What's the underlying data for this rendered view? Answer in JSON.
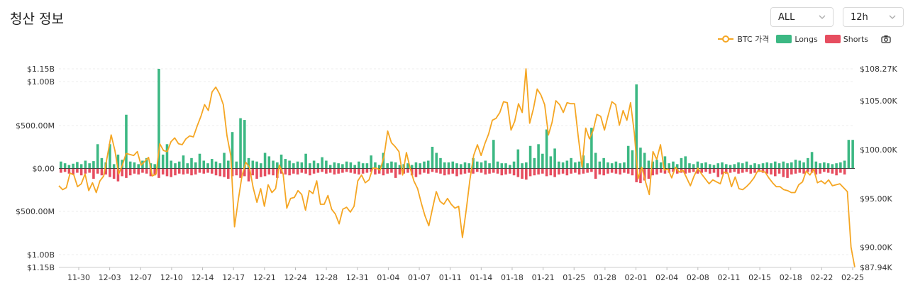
{
  "page": {
    "title": "청산 정보"
  },
  "controls": {
    "exchange_select": {
      "value": "ALL"
    },
    "interval_select": {
      "value": "12h"
    }
  },
  "icons": {
    "chevron": "chevron-down-icon",
    "camera": "camera-icon"
  },
  "colors": {
    "longs": "#3cb883",
    "shorts": "#e64d5f",
    "price": "#f5a623",
    "grid": "#eeeeee"
  },
  "chart_data": {
    "type": "bar",
    "title": "청산 정보",
    "legend": {
      "position": "top-right",
      "items": [
        "BTC 가격",
        "Longs",
        "Shorts"
      ]
    },
    "x_ticks": [
      "11-30",
      "12-03",
      "12-07",
      "12-10",
      "12-14",
      "12-17",
      "12-21",
      "12-24",
      "12-28",
      "12-31",
      "01-04",
      "01-07",
      "01-11",
      "01-14",
      "01-18",
      "01-21",
      "01-25",
      "01-28",
      "02-01",
      "02-04",
      "02-08",
      "02-11",
      "02-15",
      "02-18",
      "02-22",
      "02-25"
    ],
    "y_left_ticks": [
      "$1.15B",
      "$1.00B",
      "$500.00M",
      "$0.00",
      "$500.00M",
      "$1.00B",
      "$1.15B"
    ],
    "y_right_ticks": [
      "$108.27K",
      "$105.00K",
      "$100.00K",
      "$95.00K",
      "$90.00K",
      "$87.94K"
    ],
    "ylim_left": [
      -1150,
      1150
    ],
    "ylim_right": [
      87940,
      108270
    ],
    "units": {
      "left": "USD millions (liquidations)",
      "right": "USD (BTC price)"
    },
    "grid": true,
    "series": [
      {
        "name": "Longs",
        "axis": "left",
        "values": [
          80,
          60,
          40,
          55,
          75,
          50,
          90,
          60,
          85,
          280,
          120,
          70,
          280,
          50,
          160,
          100,
          620,
          80,
          70,
          50,
          90,
          120,
          60,
          50,
          1150,
          160,
          280,
          90,
          60,
          80,
          150,
          60,
          120,
          70,
          170,
          90,
          60,
          110,
          80,
          60,
          180,
          90,
          420,
          80,
          580,
          560,
          120,
          90,
          80,
          60,
          180,
          140,
          90,
          70,
          160,
          110,
          90,
          60,
          80,
          70,
          170,
          60,
          90,
          60,
          130,
          90,
          40,
          70,
          60,
          50,
          80,
          70,
          40,
          80,
          60,
          60,
          150,
          70,
          40,
          180,
          60,
          80,
          70,
          40,
          50,
          60,
          40,
          70,
          60,
          80,
          90,
          250,
          180,
          120,
          70,
          70,
          80,
          60,
          50,
          70,
          60,
          120,
          80,
          70,
          90,
          60,
          330,
          80,
          60,
          60,
          40,
          80,
          220,
          60,
          70,
          260,
          120,
          280,
          170,
          450,
          140,
          230,
          80,
          70,
          90,
          120,
          70,
          80,
          150,
          60,
          470,
          180,
          80,
          120,
          70,
          60,
          80,
          60,
          70,
          260,
          210,
          970,
          240,
          180,
          90,
          80,
          100,
          70,
          140,
          60,
          80,
          50,
          120,
          140,
          60,
          50,
          80,
          60,
          70,
          50,
          40,
          60,
          70,
          50,
          40,
          50,
          70,
          60,
          80,
          40,
          60,
          50,
          60,
          70,
          60,
          80,
          60,
          80,
          60,
          70,
          100,
          90,
          70,
          120,
          190,
          80,
          60,
          70,
          60,
          50,
          60,
          70,
          90,
          330,
          330
        ]
      },
      {
        "name": "Shorts",
        "axis": "left",
        "values": [
          -50,
          -40,
          -60,
          -70,
          -50,
          -80,
          -60,
          -50,
          -120,
          -60,
          -80,
          -70,
          -100,
          -120,
          -150,
          -90,
          -110,
          -80,
          -60,
          -70,
          -50,
          -60,
          -90,
          -80,
          -110,
          -70,
          -90,
          -100,
          -80,
          -60,
          -70,
          -60,
          -80,
          -70,
          -50,
          -60,
          -50,
          -60,
          -80,
          -90,
          -100,
          -120,
          -90,
          -80,
          -110,
          -90,
          -150,
          -80,
          -120,
          -100,
          -90,
          -70,
          -80,
          -110,
          -60,
          -70,
          -80,
          -60,
          -70,
          -50,
          -60,
          -80,
          -60,
          -50,
          -40,
          -60,
          -50,
          -70,
          -60,
          -50,
          -40,
          -50,
          -60,
          -70,
          -60,
          -50,
          -40,
          -70,
          -60,
          -80,
          -60,
          -50,
          -110,
          -70,
          -60,
          -50,
          -80,
          -100,
          -70,
          -50,
          -60,
          -40,
          -50,
          -60,
          -80,
          -70,
          -60,
          -90,
          -70,
          -60,
          -50,
          -60,
          -40,
          -50,
          -70,
          -60,
          -50,
          -60,
          -80,
          -70,
          -60,
          -80,
          -100,
          -120,
          -130,
          -90,
          -80,
          -70,
          -60,
          -90,
          -80,
          -100,
          -70,
          -60,
          -80,
          -60,
          -50,
          -70,
          -60,
          -50,
          -40,
          -120,
          -70,
          -80,
          -60,
          -50,
          -60,
          -70,
          -50,
          -60,
          -80,
          -160,
          -170,
          -140,
          -120,
          -80,
          -70,
          -50,
          -60,
          -50,
          -40,
          -60,
          -50,
          -60,
          -50,
          -40,
          -60,
          -50,
          -40,
          -60,
          -50,
          -100,
          -70,
          -60,
          -50,
          -40,
          -60,
          -50,
          -40,
          -60,
          -50,
          -40,
          -50,
          -60,
          -70,
          -90,
          -60,
          -100,
          -110,
          -70,
          -60,
          -50,
          -60,
          -40,
          -50,
          -70,
          -60,
          -40,
          -50,
          -60,
          -80,
          -50,
          -70
        ]
      },
      {
        "name": "BTC 가격",
        "axis": "right",
        "values": [
          96300,
          95900,
          96100,
          97600,
          97400,
          96200,
          96500,
          97500,
          95800,
          96600,
          95600,
          96800,
          97300,
          99400,
          101500,
          99900,
          97500,
          98400,
          99600,
          99500,
          99400,
          99800,
          98400,
          98800,
          99200,
          97300,
          97500,
          100600,
          99900,
          99800,
          100800,
          101200,
          100600,
          100500,
          101100,
          101400,
          101300,
          102400,
          103400,
          104600,
          104000,
          105900,
          106400,
          105700,
          104600,
          101400,
          99400,
          92100,
          94800,
          97300,
          98700,
          98200,
          96100,
          94600,
          96000,
          94200,
          96400,
          95600,
          96000,
          98400,
          97500,
          94000,
          95000,
          95100,
          95800,
          95400,
          93800,
          95800,
          95500,
          96800,
          94400,
          94400,
          95300,
          93900,
          93400,
          92400,
          93900,
          94100,
          93600,
          94200,
          96800,
          97400,
          96600,
          96900,
          98100,
          98100,
          97900,
          99300,
          101900,
          100700,
          100300,
          99800,
          97400,
          99700,
          98100,
          96800,
          96000,
          94500,
          93200,
          92200,
          94000,
          95700,
          94700,
          94400,
          95000,
          94400,
          94000,
          94200,
          91000,
          93800,
          96900,
          99400,
          100500,
          99400,
          100600,
          101600,
          103000,
          103200,
          103800,
          104900,
          104800,
          102000,
          102900,
          104700,
          103800,
          108270,
          102700,
          104200,
          106200,
          105600,
          104600,
          101500,
          102800,
          105000,
          104600,
          103800,
          104800,
          104700,
          104700,
          101300,
          98200,
          102200,
          101100,
          102000,
          103600,
          103400,
          102000,
          103500,
          104900,
          104600,
          102500,
          104000,
          103000,
          104800,
          101700,
          97000,
          98200,
          96700,
          95400,
          99800,
          99000,
          100500,
          97900,
          98000,
          97100,
          98200,
          97700,
          97900,
          97100,
          96300,
          97300,
          98100,
          97500,
          97000,
          96500,
          96900,
          96700,
          96500,
          97700,
          97600,
          96200,
          97200,
          96000,
          95900,
          96200,
          96600,
          97100,
          97800,
          97800,
          97700,
          97100,
          96600,
          96200,
          96200,
          95900,
          95800,
          95600,
          95600,
          96400,
          96700,
          97800,
          97400,
          98000,
          96600,
          96800,
          96500,
          96900,
          96300,
          96400,
          96500,
          96100,
          95700,
          90000,
          87940
        ]
      }
    ]
  }
}
